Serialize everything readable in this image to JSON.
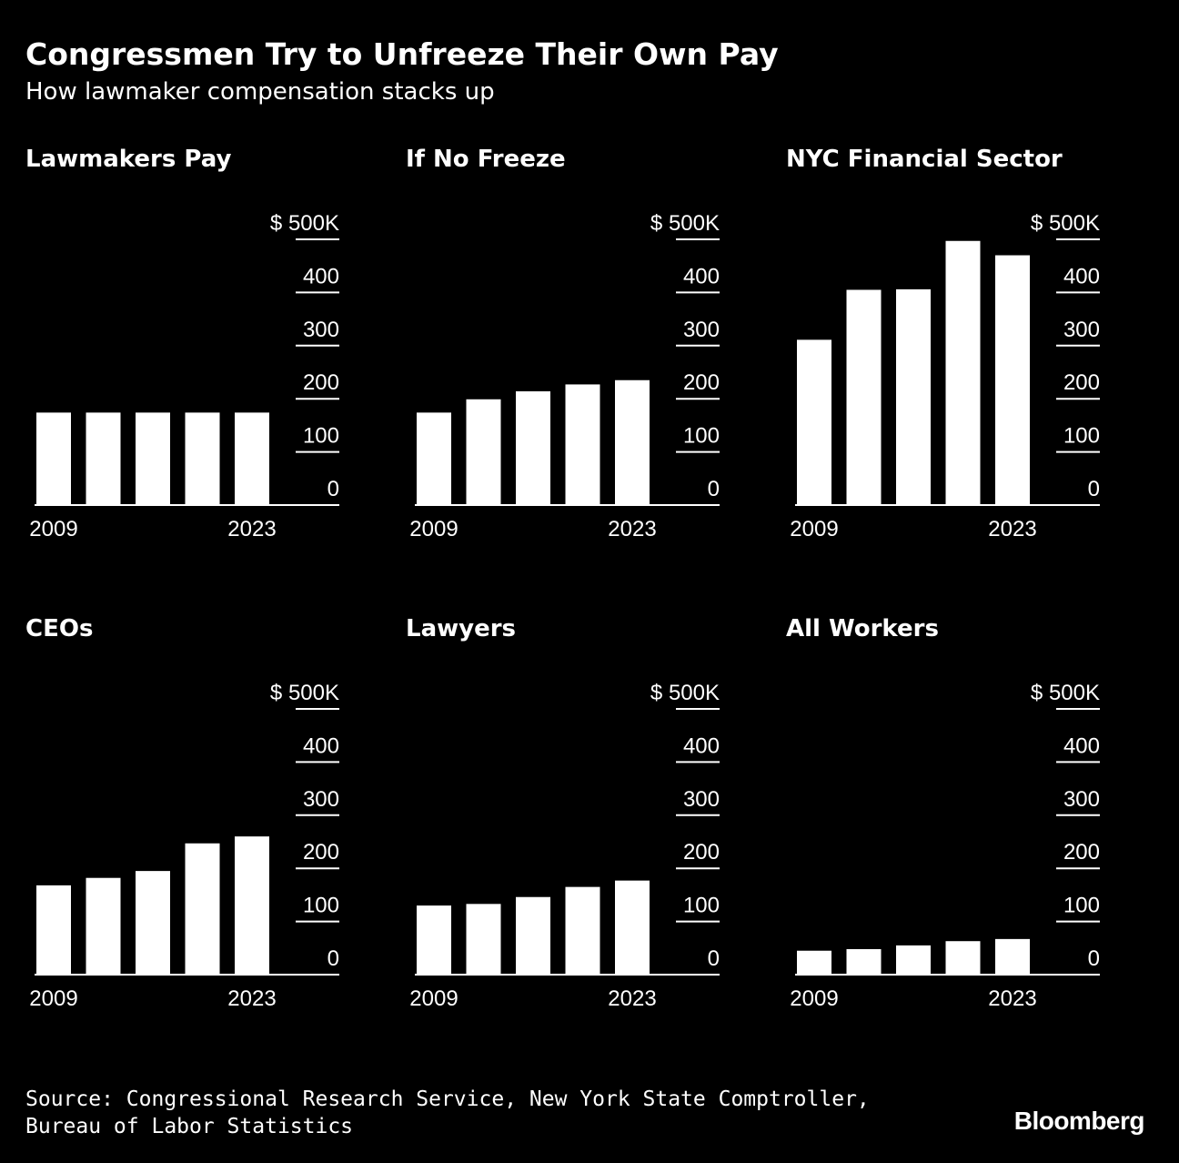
{
  "title": "Congressmen Try to Unfreeze Their Own Pay",
  "subtitle": "How lawmaker compensation stacks up",
  "colors": {
    "background": "#000000",
    "bars": "#ffffff",
    "text": "#ffffff"
  },
  "chart_data": [
    {
      "type": "bar",
      "title": "Lawmakers Pay",
      "x_start_label": "2009",
      "x_end_label": "2023",
      "values": [
        174,
        174,
        174,
        174,
        174
      ],
      "ylim": [
        0,
        500
      ],
      "yticks": [
        "0",
        "100",
        "200",
        "300",
        "400",
        "$ 500K"
      ]
    },
    {
      "type": "bar",
      "title": "If No Freeze",
      "x_start_label": "2009",
      "x_end_label": "2023",
      "values": [
        174,
        199,
        214,
        227,
        235
      ],
      "ylim": [
        0,
        500
      ],
      "yticks": [
        "0",
        "100",
        "200",
        "300",
        "400",
        "$ 500K"
      ]
    },
    {
      "type": "bar",
      "title": "NYC Financial Sector",
      "x_start_label": "2009",
      "x_end_label": "2023",
      "values": [
        311,
        405,
        406,
        497,
        470
      ],
      "ylim": [
        0,
        500
      ],
      "yticks": [
        "0",
        "100",
        "200",
        "300",
        "400",
        "$ 500K"
      ]
    },
    {
      "type": "bar",
      "title": "CEOs",
      "x_start_label": "2009",
      "x_end_label": "2023",
      "values": [
        168,
        182,
        195,
        247,
        260
      ],
      "ylim": [
        0,
        500
      ],
      "yticks": [
        "0",
        "100",
        "200",
        "300",
        "400",
        "$ 500K"
      ]
    },
    {
      "type": "bar",
      "title": "Lawyers",
      "x_start_label": "2009",
      "x_end_label": "2023",
      "values": [
        130,
        133,
        146,
        165,
        177
      ],
      "ylim": [
        0,
        500
      ],
      "yticks": [
        "0",
        "100",
        "200",
        "300",
        "400",
        "$ 500K"
      ]
    },
    {
      "type": "bar",
      "title": "All Workers",
      "x_start_label": "2009",
      "x_end_label": "2023",
      "values": [
        45,
        48,
        55,
        63,
        67
      ],
      "ylim": [
        0,
        500
      ],
      "yticks": [
        "0",
        "100",
        "200",
        "300",
        "400",
        "$ 500K"
      ]
    }
  ],
  "source": "Source: Congressional Research Service, New York State Comptroller, Bureau of Labor Statistics",
  "logo": "Bloomberg"
}
